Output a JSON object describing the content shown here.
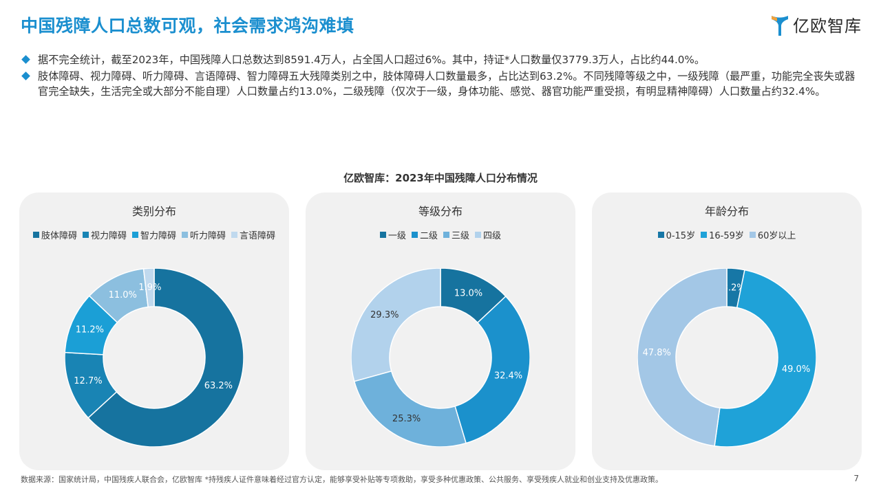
{
  "page": {
    "title": "中国残障人口总数可观，社会需求鸿沟难填",
    "logo_text": "亿欧智库",
    "bullets": [
      "据不完全统计，截至2023年，中国残障人口总数达到8591.4万人，占全国人口超过6%。其中，持证*人口数量仅3779.3万人，占比约44.0%。",
      "肢体障碍、视力障碍、听力障碍、言语障碍、智力障碍五大残障类别之中，肢体障碍人口数量最多，占比达到63.2%。不同残障等级之中，一级残障（最严重，功能完全丧失或器官完全缺失，生活完全或大部分不能自理）人口数量占约13.0%，二级残障（仅次于一级，身体功能、感觉、器官功能严重受损，有明显精神障碍）人口数量占约32.4%。"
    ],
    "chart_title": "亿欧智库：2023年中国残障人口分布情况",
    "footnote": "数据来源：国家统计局，中国残疾人联合会，亿欧智库   *持残疾人证件意味着经过官方认定，能够享受补贴等专项救助，享受多种优惠政策、公共服务、享受残疾人就业和创业支持及优惠政策。",
    "page_number": "7"
  },
  "chart_data": [
    {
      "type": "pie",
      "title": "类别分布",
      "categories": [
        "肢体障碍",
        "视力障碍",
        "智力障碍",
        "听力障碍",
        "言语障碍"
      ],
      "legend_order": [
        0,
        1,
        2,
        3,
        4
      ],
      "values": [
        63.2,
        12.7,
        11.2,
        11.0,
        1.9
      ],
      "labels": [
        "63.2%",
        "12.7%",
        "11.2%",
        "11.0%",
        "1.9%"
      ],
      "colors": [
        "#16739f",
        "#1984b4",
        "#1b9fd6",
        "#8cbfdf",
        "#c0d9ee"
      ],
      "label_colors": [
        "#ffffff",
        "#ffffff",
        "#ffffff",
        "#ffffff",
        "#ffffff"
      ]
    },
    {
      "type": "pie",
      "title": "等级分布",
      "categories": [
        "一级",
        "二级",
        "三级",
        "四级"
      ],
      "legend_order": [
        0,
        1,
        2,
        3
      ],
      "values": [
        13.0,
        32.4,
        25.3,
        29.3
      ],
      "labels": [
        "13.0%",
        "32.4%",
        "25.3%",
        "29.3%"
      ],
      "colors": [
        "#16739f",
        "#1b91cc",
        "#6eb1db",
        "#b2d2ec"
      ],
      "label_colors": [
        "#ffffff",
        "#ffffff",
        "#333333",
        "#333333"
      ]
    },
    {
      "type": "pie",
      "title": "年龄分布",
      "categories": [
        "0-15岁",
        "16-59岁",
        "60岁以上"
      ],
      "legend_order": [
        0,
        1,
        2
      ],
      "values": [
        3.2,
        49.0,
        47.8
      ],
      "labels": [
        "3.2%",
        "49.0%",
        "47.8%"
      ],
      "colors": [
        "#1777a6",
        "#1fa2d8",
        "#a3c7e6"
      ],
      "label_colors": [
        "#ffffff",
        "#ffffff",
        "#ffffff"
      ]
    }
  ]
}
